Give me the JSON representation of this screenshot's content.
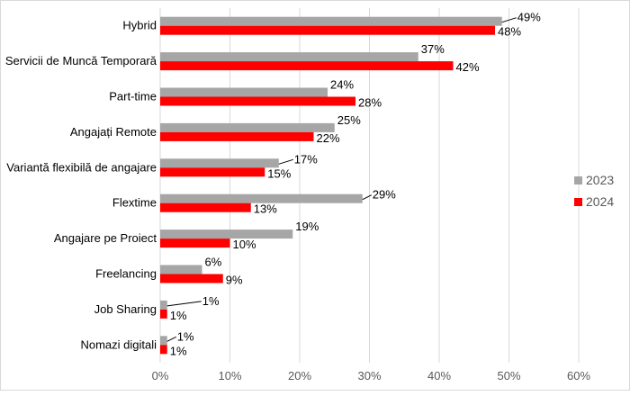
{
  "chart_data": {
    "type": "bar",
    "orientation": "horizontal",
    "title": "",
    "xlabel": "",
    "ylabel": "",
    "categories": [
      "Hybrid",
      "Servicii de Muncă Temporară",
      "Part-time",
      "Angajați Remote",
      "Variantă flexibilă de angajare",
      "Flextime",
      "Angajare pe Proiect",
      "Freelancing",
      "Job Sharing",
      "Nomazi digitali"
    ],
    "series": [
      {
        "name": "2023",
        "color": "#a6a6a6",
        "values": [
          49,
          37,
          24,
          25,
          17,
          29,
          19,
          6,
          1,
          1
        ]
      },
      {
        "name": "2024",
        "color": "#ff0000",
        "values": [
          48,
          42,
          28,
          22,
          15,
          13,
          10,
          9,
          1,
          1
        ]
      }
    ],
    "xlim": [
      0,
      60
    ],
    "x_ticks": [
      0,
      10,
      20,
      30,
      40,
      50,
      60
    ],
    "x_tick_suffix": "%",
    "value_suffix": "%",
    "grid": true,
    "legend_position": "right"
  }
}
